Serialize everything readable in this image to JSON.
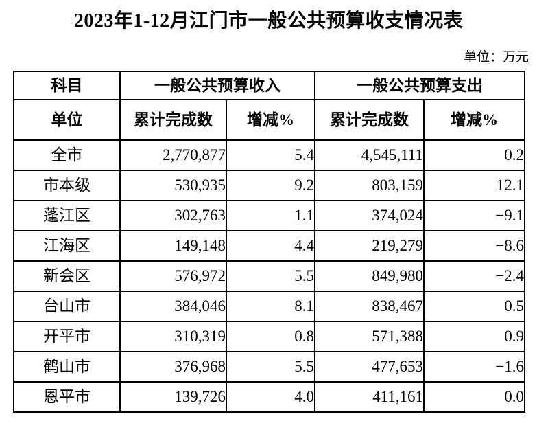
{
  "title": "2023年1-12月江门市一般公共预算收支情况表",
  "unit_note": "单位：万元",
  "table": {
    "header": {
      "subject": "科目",
      "unit": "单位",
      "group_revenue": "一般公共预算收入",
      "group_expenditure": "一般公共预算支出",
      "revenue_cumulative": "累计完成数",
      "revenue_change": "增减%",
      "expenditure_cumulative": "累计完成数",
      "expenditure_change": "增减%"
    },
    "rows": [
      {
        "region": "全市",
        "revenue": "2,770,877",
        "revenue_change": "5.4",
        "expenditure": "4,545,111",
        "expenditure_change": "0.2"
      },
      {
        "region": "市本级",
        "revenue": "530,935",
        "revenue_change": "9.2",
        "expenditure": "803,159",
        "expenditure_change": "12.1"
      },
      {
        "region": "蓬江区",
        "revenue": "302,763",
        "revenue_change": "1.1",
        "expenditure": "374,024",
        "expenditure_change": "−9.1"
      },
      {
        "region": "江海区",
        "revenue": "149,148",
        "revenue_change": "4.4",
        "expenditure": "219,279",
        "expenditure_change": "−8.6"
      },
      {
        "region": "新会区",
        "revenue": "576,972",
        "revenue_change": "5.5",
        "expenditure": "849,980",
        "expenditure_change": "−2.4"
      },
      {
        "region": "台山市",
        "revenue": "384,046",
        "revenue_change": "8.1",
        "expenditure": "838,467",
        "expenditure_change": "0.5"
      },
      {
        "region": "开平市",
        "revenue": "310,319",
        "revenue_change": "0.8",
        "expenditure": "571,388",
        "expenditure_change": "0.9"
      },
      {
        "region": "鹤山市",
        "revenue": "376,968",
        "revenue_change": "5.5",
        "expenditure": "477,653",
        "expenditure_change": "−1.6"
      },
      {
        "region": "恩平市",
        "revenue": "139,726",
        "revenue_change": "4.0",
        "expenditure": "411,161",
        "expenditure_change": "0.0"
      }
    ]
  },
  "chart_data": {
    "type": "table",
    "title": "2023年1-12月江门市一般公共预算收支情况表",
    "unit": "万元",
    "columns": [
      "单位",
      "一般公共预算收入-累计完成数",
      "一般公共预算收入-增减%",
      "一般公共预算支出-累计完成数",
      "一般公共预算支出-增减%"
    ],
    "rows": [
      [
        "全市",
        2770877,
        5.4,
        4545111,
        0.2
      ],
      [
        "市本级",
        530935,
        9.2,
        803159,
        12.1
      ],
      [
        "蓬江区",
        302763,
        1.1,
        374024,
        -9.1
      ],
      [
        "江海区",
        149148,
        4.4,
        219279,
        -8.6
      ],
      [
        "新会区",
        576972,
        5.5,
        849980,
        -2.4
      ],
      [
        "台山市",
        384046,
        8.1,
        838467,
        0.5
      ],
      [
        "开平市",
        310319,
        0.8,
        571388,
        0.9
      ],
      [
        "鹤山市",
        376968,
        5.5,
        477653,
        -1.6
      ],
      [
        "恩平市",
        139726,
        4.0,
        411161,
        0.0
      ]
    ]
  }
}
